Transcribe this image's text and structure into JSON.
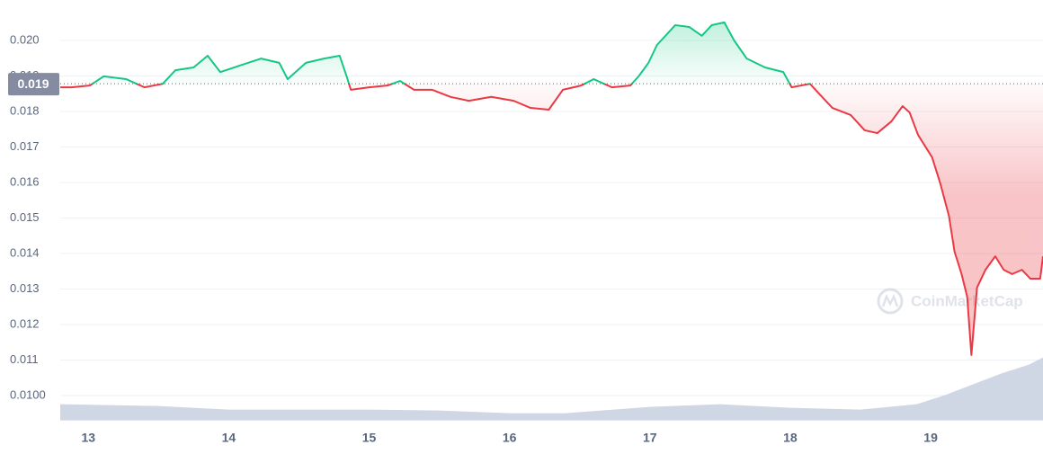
{
  "chart_data": {
    "type": "line",
    "x": [
      12.8,
      12.88,
      13.01,
      13.11,
      13.27,
      13.4,
      13.53,
      13.62,
      13.75,
      13.85,
      13.94,
      14.1,
      14.23,
      14.36,
      14.42,
      14.55,
      14.68,
      14.79,
      14.84,
      14.87,
      15.0,
      15.13,
      15.22,
      15.32,
      15.45,
      15.58,
      15.71,
      15.87,
      16.03,
      16.15,
      16.28,
      16.38,
      16.51,
      16.6,
      16.73,
      16.86,
      16.92,
      16.99,
      17.05,
      17.18,
      17.28,
      17.37,
      17.44,
      17.53,
      17.6,
      17.69,
      17.82,
      17.95,
      18.01,
      18.14,
      18.21,
      18.3,
      18.43,
      18.53,
      18.62,
      18.72,
      18.8,
      18.85,
      18.91,
      19.01,
      19.07,
      19.13,
      19.17,
      19.22,
      19.26,
      19.29,
      19.33,
      19.39,
      19.46,
      19.52,
      19.58,
      19.65,
      19.71,
      19.78,
      19.8
    ],
    "series": [
      {
        "values": [
          0.01868,
          0.01868,
          0.01873,
          0.01899,
          0.01891,
          0.01868,
          0.01878,
          0.01916,
          0.01924,
          0.01957,
          0.01911,
          0.01932,
          0.01949,
          0.01937,
          0.01891,
          0.01937,
          0.01949,
          0.01957,
          0.01899,
          0.01861,
          0.01868,
          0.01873,
          0.01886,
          0.01861,
          0.01861,
          0.01841,
          0.0183,
          0.01841,
          0.0183,
          0.0181,
          0.01805,
          0.01861,
          0.01873,
          0.01891,
          0.01868,
          0.01873,
          0.01899,
          0.01937,
          0.01987,
          0.02043,
          0.02038,
          0.02013,
          0.02043,
          0.02051,
          0.02,
          0.01949,
          0.01924,
          0.01911,
          0.01868,
          0.01878,
          0.01848,
          0.0181,
          0.0179,
          0.01747,
          0.01739,
          0.01772,
          0.01815,
          0.01797,
          0.01734,
          0.01671,
          0.01595,
          0.01506,
          0.01405,
          0.01342,
          0.01278,
          0.01114,
          0.01304,
          0.01354,
          0.01392,
          0.01354,
          0.01342,
          0.01354,
          0.01329,
          0.01329,
          0.01392
        ]
      }
    ],
    "up_color": "#16c784",
    "down_color": "#ea3943",
    "baseline": {
      "value": 0.01878,
      "label": "0.019"
    },
    "volume": {
      "x": [
        12.8,
        13.5,
        14.0,
        15.0,
        15.5,
        16.0,
        16.4,
        17.0,
        17.5,
        18.0,
        18.5,
        18.9,
        19.1,
        19.3,
        19.5,
        19.7,
        19.8
      ],
      "values": [
        18,
        16,
        12,
        12,
        11,
        8,
        8,
        15,
        18,
        14,
        12,
        18,
        28,
        40,
        52,
        62,
        70
      ],
      "color": "#cfd6e4"
    },
    "xlim": [
      12.8,
      19.8
    ],
    "xticks": [
      13,
      14,
      15,
      16,
      17,
      18,
      19
    ],
    "ylim": [
      0.0093,
      0.0209
    ],
    "yticks": [
      {
        "value": 0.02,
        "label": "0.020"
      },
      0.019,
      0.018,
      0.017,
      0.016,
      0.015,
      0.014,
      0.013,
      0.012,
      0.011,
      {
        "value": 0.01,
        "label": "0.0100"
      }
    ],
    "grid": true,
    "watermark": "CoinMarketCap"
  }
}
